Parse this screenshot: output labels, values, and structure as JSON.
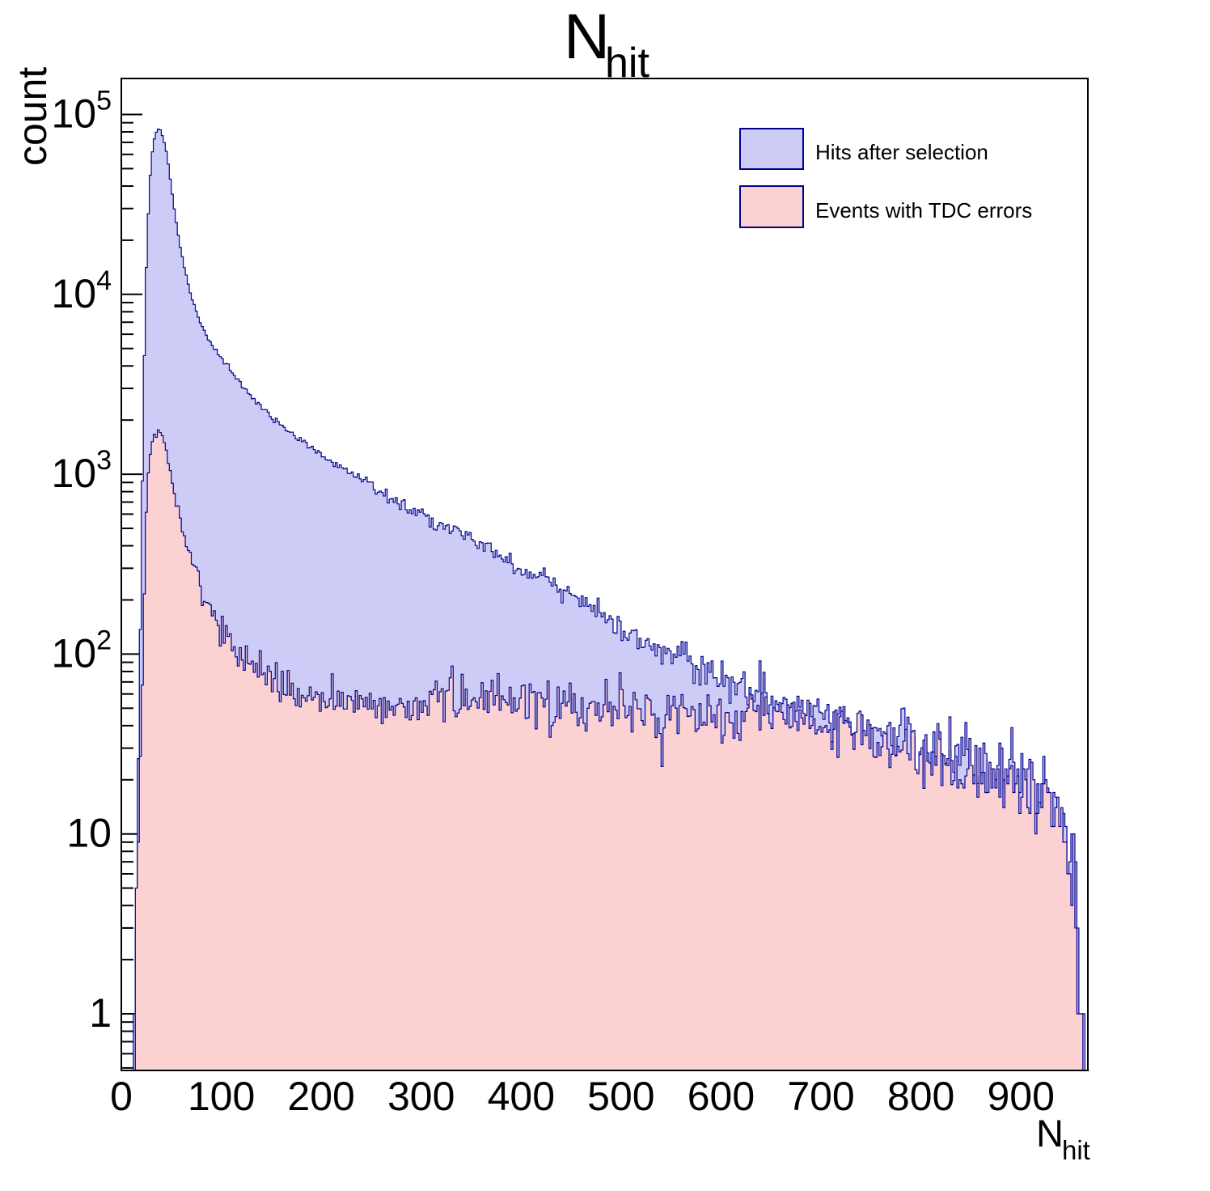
{
  "title": {
    "main": "N",
    "sub": "hit"
  },
  "y_axis": {
    "title": "count",
    "scale": "log",
    "decade_labels": [
      {
        "exp": 0,
        "base": "1",
        "sup": ""
      },
      {
        "exp": 1,
        "base": "10",
        "sup": ""
      },
      {
        "exp": 2,
        "base": "10",
        "sup": "2"
      },
      {
        "exp": 3,
        "base": "10",
        "sup": "3"
      },
      {
        "exp": 4,
        "base": "10",
        "sup": "4"
      },
      {
        "exp": 5,
        "base": "10",
        "sup": "5"
      }
    ]
  },
  "x_axis": {
    "title_main": "N",
    "title_sub": "hit",
    "tick_values": [
      0,
      100,
      200,
      300,
      400,
      500,
      600,
      700,
      800,
      900
    ],
    "minor_step": 20
  },
  "colors": {
    "blue_fill": "#ccccf7",
    "pink_fill": "#fcd1d1",
    "hist_line": "#000090",
    "axis": "#000000",
    "background": "#ffffff"
  },
  "legend": {
    "entries": [
      {
        "label": "Hits after selection",
        "fill_key": "blue_fill"
      },
      {
        "label": "Events with TDC errors",
        "fill_key": "pink_fill"
      }
    ]
  },
  "chart_data": {
    "type": "histogram",
    "x_range": [
      0,
      967
    ],
    "y_range_log": [
      0.484,
      158000
    ],
    "bin_width": 2,
    "noise_seed": 1337,
    "noise_scale": 1.05,
    "series": [
      {
        "name": "Hits after selection",
        "fill_key": "blue_fill",
        "control_points": [
          [
            6,
            0.08
          ],
          [
            9,
            0.25
          ],
          [
            11,
            0.6
          ],
          [
            13,
            1.5
          ],
          [
            15,
            5
          ],
          [
            17,
            25
          ],
          [
            19,
            150
          ],
          [
            21,
            900
          ],
          [
            23,
            4500
          ],
          [
            25,
            14000
          ],
          [
            27,
            28000
          ],
          [
            29,
            46000
          ],
          [
            31,
            62000
          ],
          [
            33,
            73000
          ],
          [
            35,
            80000
          ],
          [
            37,
            83000
          ],
          [
            39,
            82000
          ],
          [
            41,
            77000
          ],
          [
            43,
            70000
          ],
          [
            45,
            62000
          ],
          [
            47,
            53000
          ],
          [
            49,
            44000
          ],
          [
            52,
            33000
          ],
          [
            55,
            25000
          ],
          [
            58,
            19500
          ],
          [
            62,
            15000
          ],
          [
            66,
            12000
          ],
          [
            70,
            9800
          ],
          [
            75,
            8000
          ],
          [
            80,
            6800
          ],
          [
            86,
            5800
          ],
          [
            92,
            5100
          ],
          [
            100,
            4450
          ],
          [
            110,
            3750
          ],
          [
            120,
            3180
          ],
          [
            130,
            2730
          ],
          [
            140,
            2370
          ],
          [
            150,
            2090
          ],
          [
            160,
            1870
          ],
          [
            170,
            1680
          ],
          [
            180,
            1520
          ],
          [
            190,
            1400
          ],
          [
            200,
            1290
          ],
          [
            215,
            1140
          ],
          [
            230,
            1010
          ],
          [
            245,
            905
          ],
          [
            260,
            805
          ],
          [
            275,
            720
          ],
          [
            290,
            645
          ],
          [
            305,
            580
          ],
          [
            320,
            525
          ],
          [
            335,
            475
          ],
          [
            350,
            432
          ],
          [
            365,
            392
          ],
          [
            380,
            352
          ],
          [
            395,
            312
          ],
          [
            410,
            280
          ],
          [
            425,
            252
          ],
          [
            440,
            224
          ],
          [
            455,
            200
          ],
          [
            470,
            178
          ],
          [
            485,
            158
          ],
          [
            500,
            142
          ],
          [
            515,
            128
          ],
          [
            530,
            115
          ],
          [
            545,
            104
          ],
          [
            560,
            94
          ],
          [
            575,
            85
          ],
          [
            590,
            78
          ],
          [
            605,
            72
          ],
          [
            620,
            66
          ],
          [
            635,
            61
          ],
          [
            650,
            57
          ],
          [
            665,
            53
          ],
          [
            680,
            50
          ],
          [
            700,
            47
          ],
          [
            720,
            43
          ],
          [
            740,
            40
          ],
          [
            760,
            37
          ],
          [
            780,
            34
          ],
          [
            800,
            31
          ],
          [
            820,
            29
          ],
          [
            840,
            27
          ],
          [
            860,
            25
          ],
          [
            880,
            23
          ],
          [
            900,
            21
          ],
          [
            915,
            19
          ],
          [
            928,
            17
          ],
          [
            936,
            14
          ],
          [
            944,
            10
          ],
          [
            950,
            7
          ],
          [
            955,
            4
          ],
          [
            959,
            2
          ],
          [
            962,
            1
          ],
          [
            964,
            0.3
          ]
        ]
      },
      {
        "name": "Events with TDC errors",
        "fill_key": "pink_fill",
        "control_points": [
          [
            7,
            0.07
          ],
          [
            10,
            0.2
          ],
          [
            12,
            0.5
          ],
          [
            14,
            1.2
          ],
          [
            16,
            3
          ],
          [
            18,
            9
          ],
          [
            20,
            35
          ],
          [
            22,
            140
          ],
          [
            24,
            430
          ],
          [
            26,
            820
          ],
          [
            28,
            1150
          ],
          [
            30,
            1350
          ],
          [
            32,
            1490
          ],
          [
            34,
            1600
          ],
          [
            36,
            1690
          ],
          [
            38,
            1740
          ],
          [
            40,
            1710
          ],
          [
            42,
            1620
          ],
          [
            44,
            1470
          ],
          [
            46,
            1290
          ],
          [
            48,
            1110
          ],
          [
            50,
            960
          ],
          [
            53,
            790
          ],
          [
            56,
            660
          ],
          [
            59,
            560
          ],
          [
            62,
            480
          ],
          [
            65,
            415
          ],
          [
            68,
            365
          ],
          [
            72,
            310
          ],
          [
            76,
            268
          ],
          [
            80,
            235
          ],
          [
            85,
            201
          ],
          [
            90,
            176
          ],
          [
            95,
            156
          ],
          [
            100,
            140
          ],
          [
            108,
            118
          ],
          [
            116,
            103
          ],
          [
            124,
            93
          ],
          [
            132,
            85
          ],
          [
            140,
            79
          ],
          [
            150,
            73
          ],
          [
            160,
            68
          ],
          [
            170,
            64
          ],
          [
            180,
            61
          ],
          [
            190,
            59
          ],
          [
            200,
            57
          ],
          [
            215,
            55.5
          ],
          [
            230,
            54.5
          ],
          [
            245,
            54
          ],
          [
            260,
            53.5
          ],
          [
            280,
            53
          ],
          [
            300,
            54
          ],
          [
            315,
            56
          ],
          [
            330,
            58
          ],
          [
            345,
            58.5
          ],
          [
            360,
            58
          ],
          [
            375,
            57
          ],
          [
            390,
            56
          ],
          [
            405,
            55
          ],
          [
            420,
            54
          ],
          [
            435,
            53
          ],
          [
            450,
            52
          ],
          [
            465,
            51
          ],
          [
            480,
            50
          ],
          [
            495,
            49
          ],
          [
            510,
            48
          ],
          [
            525,
            47
          ],
          [
            540,
            46
          ],
          [
            555,
            45
          ],
          [
            570,
            44.5
          ],
          [
            585,
            44
          ],
          [
            600,
            44
          ],
          [
            620,
            45
          ],
          [
            640,
            45.5
          ],
          [
            660,
            45
          ],
          [
            680,
            43
          ],
          [
            700,
            41
          ],
          [
            720,
            38
          ],
          [
            740,
            35.5
          ],
          [
            760,
            33
          ],
          [
            780,
            30.5
          ],
          [
            800,
            28.5
          ],
          [
            820,
            26.5
          ],
          [
            840,
            24.5
          ],
          [
            860,
            22.5
          ],
          [
            880,
            21
          ],
          [
            900,
            19
          ],
          [
            915,
            17
          ],
          [
            928,
            15
          ],
          [
            936,
            12.5
          ],
          [
            944,
            9
          ],
          [
            950,
            6
          ],
          [
            955,
            3.5
          ],
          [
            959,
            1.8
          ],
          [
            962,
            0.9
          ],
          [
            964,
            0.3
          ]
        ]
      }
    ]
  }
}
